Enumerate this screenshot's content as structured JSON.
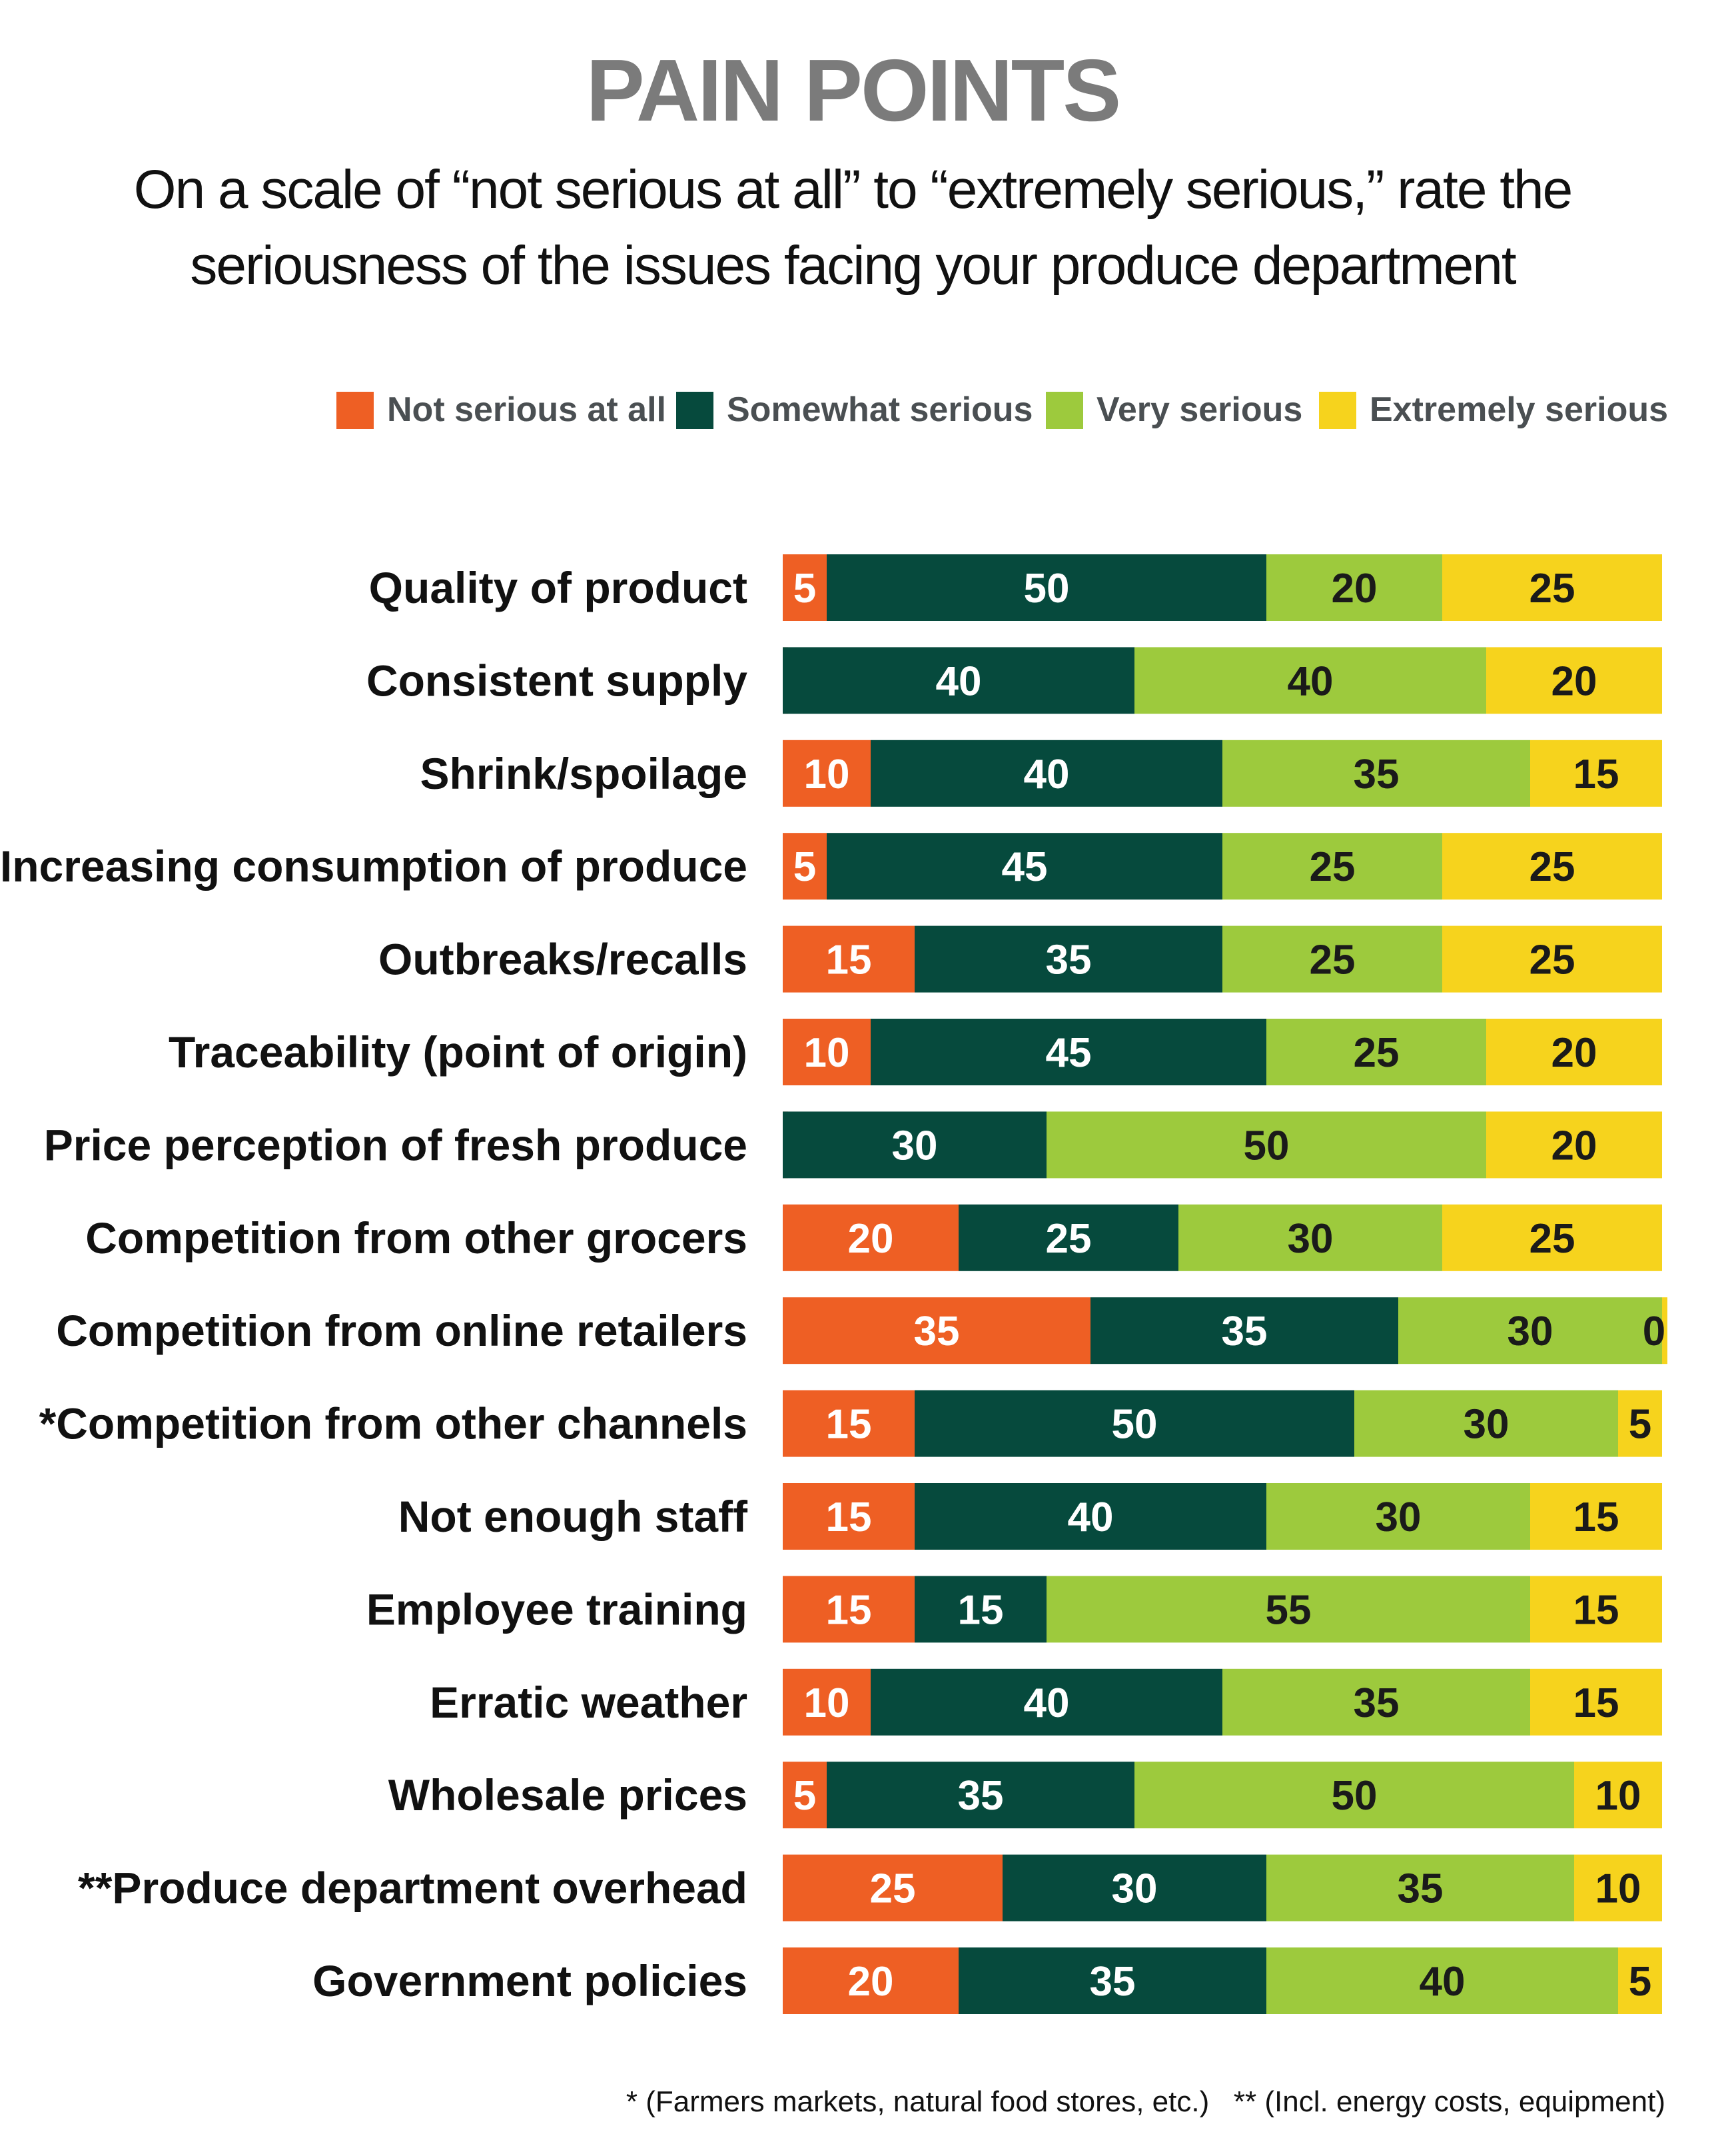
{
  "chart_data": {
    "type": "bar",
    "orientation": "horizontal",
    "stacked": true,
    "title": "PAIN POINTS",
    "subtitle": "On a scale of “not serious at all” to “extremely serious,” rate the seriousness of the issues facing your produce department",
    "categories": [
      "Quality of product",
      "Consistent supply",
      "Shrink/spoilage",
      "Increasing consumption of produce",
      "Outbreaks/recalls",
      "Traceability (point of origin)",
      "Price perception of fresh produce",
      "Competition from other grocers",
      "Competition from online retailers",
      "*Competition from other channels",
      "Not enough staff",
      "Employee training",
      "Erratic weather",
      "Wholesale prices",
      "**Produce department overhead",
      "Government policies"
    ],
    "series": [
      {
        "name": "Not serious at all",
        "color": "#ee5f24",
        "label_color": "#ffffff",
        "values": [
          5,
          0,
          10,
          5,
          15,
          10,
          0,
          20,
          35,
          15,
          15,
          15,
          10,
          5,
          25,
          20
        ]
      },
      {
        "name": "Somewhat serious",
        "color": "#064a3d",
        "label_color": "#ffffff",
        "values": [
          50,
          40,
          40,
          45,
          35,
          45,
          30,
          25,
          35,
          50,
          40,
          15,
          40,
          35,
          30,
          35
        ]
      },
      {
        "name": "Very serious",
        "color": "#9dca3d",
        "label_color": "#1a1a1a",
        "values": [
          20,
          40,
          35,
          25,
          25,
          25,
          50,
          30,
          30,
          30,
          30,
          55,
          35,
          50,
          35,
          40
        ]
      },
      {
        "name": "Extremely serious",
        "color": "#f6d31d",
        "label_color": "#1a1a1a",
        "values": [
          25,
          20,
          15,
          25,
          25,
          20,
          20,
          25,
          0,
          5,
          15,
          15,
          15,
          10,
          10,
          5
        ]
      }
    ],
    "legend_position": "top-right",
    "xlim": [
      0,
      100
    ],
    "footnote": "* (Farmers markets, natural food stores, etc.)   ** (Incl. energy costs, equipment)"
  }
}
